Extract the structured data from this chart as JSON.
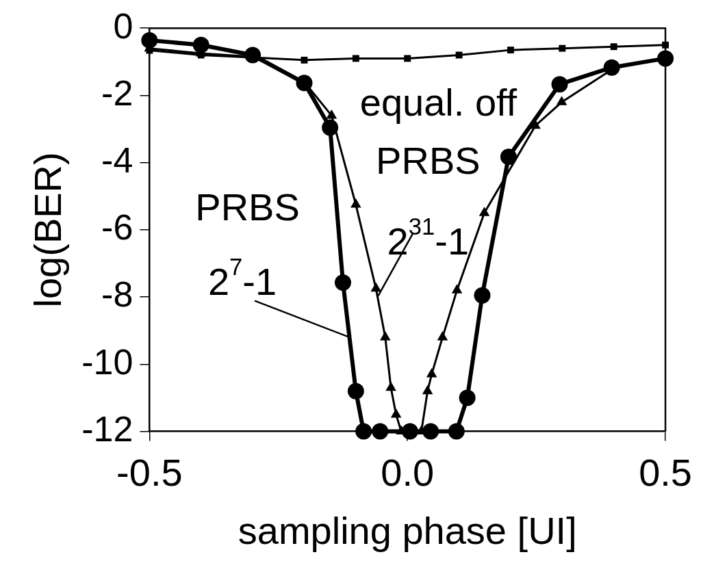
{
  "chart_data": {
    "type": "line",
    "xlabel": "sampling phase [UI]",
    "ylabel": "log(BER)",
    "xlim": [
      -0.5,
      0.5
    ],
    "xticks": [
      -0.5,
      {
        "value": 0,
        "label": "0.0"
      },
      0.5
    ],
    "ylim": [
      -12,
      0
    ],
    "yticks": [
      0,
      -2,
      -4,
      -6,
      -8,
      -10,
      -12
    ],
    "grid": false,
    "legend": false,
    "series": [
      {
        "color": "#000000",
        "marker": "square",
        "x": [
          -0.5,
          -0.4,
          -0.3,
          -0.2,
          -0.1,
          0,
          0.1,
          0.2,
          0.3,
          0.4,
          0.5
        ],
        "values": [
          -0.66,
          -0.8,
          -0.87,
          -0.95,
          -0.9,
          -0.9,
          -0.8,
          -0.65,
          -0.6,
          -0.55,
          -0.5
        ]
      },
      {
        "color": "#000000",
        "marker": "triangle",
        "x": [
          -0.5,
          -0.4,
          -0.3,
          -0.2,
          -0.147,
          -0.1,
          -0.061,
          -0.043,
          -0.032,
          -0.022,
          -0.012,
          0.027,
          0.039,
          0.047,
          0.068,
          0.096,
          0.149,
          0.248,
          0.299,
          0.399,
          0.5
        ],
        "values": [
          -0.6,
          -0.75,
          -0.85,
          -1.6,
          -2.6,
          -5.25,
          -7.75,
          -9.2,
          -10.7,
          -11.5,
          -12,
          -12,
          -10.8,
          -10.3,
          -9.2,
          -7.8,
          -5.5,
          -2.9,
          -2.2,
          -1.2,
          -0.9
        ]
      },
      {
        "color": "#000000",
        "marker": "circle",
        "x": [
          -0.5,
          -0.4,
          -0.3,
          -0.2,
          -0.15,
          -0.125,
          -0.1,
          -0.085,
          -0.053,
          0.005,
          0.045,
          0.095,
          0.116,
          0.145,
          0.196,
          0.295,
          0.396,
          0.5
        ],
        "values": [
          -0.36,
          -0.5,
          -0.8,
          -1.63,
          -2.96,
          -7.57,
          -10.8,
          -12,
          -12,
          -12,
          -12,
          -12,
          -11,
          -7.95,
          -3.83,
          -1.67,
          -1.17,
          -0.9
        ]
      }
    ],
    "annotations": [
      "equal. off",
      "PRBS",
      {
        "text": "2$^{7}$-1",
        "x": -0.112,
        "y": -9.2
      },
      "PRBS",
      {
        "text": "2$^{31}$-1",
        "x": -0.058,
        "y": -8.0
      }
    ]
  }
}
